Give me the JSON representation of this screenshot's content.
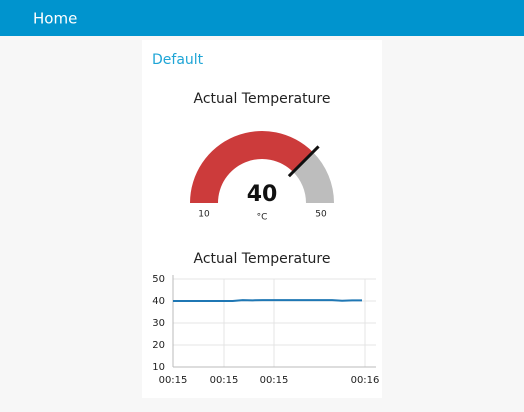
{
  "header": {
    "title": "Home"
  },
  "group": {
    "title": "Default"
  },
  "gauge": {
    "title": "Actual Temperature",
    "value": 40,
    "unit": "°C",
    "min": 10,
    "max": 50,
    "color": "#cc3b3b",
    "track_color": "#bdbdbd"
  },
  "chart_data": {
    "type": "line",
    "title": "Actual Temperature",
    "xticks": [
      "00:15",
      "00:15",
      "00:15",
      "00:16"
    ],
    "ylim": [
      10,
      50
    ],
    "yticks": [
      10,
      20,
      30,
      40,
      50
    ],
    "grid": true,
    "series": [
      {
        "color": "#1f77b4",
        "values": [
          40,
          40,
          40,
          40,
          40,
          40,
          40,
          40.4,
          40.3,
          40.4,
          40.4,
          40.4,
          40.4,
          40.4,
          40.4,
          40.4,
          40.4,
          40.1,
          40.3,
          40.3
        ]
      }
    ]
  }
}
